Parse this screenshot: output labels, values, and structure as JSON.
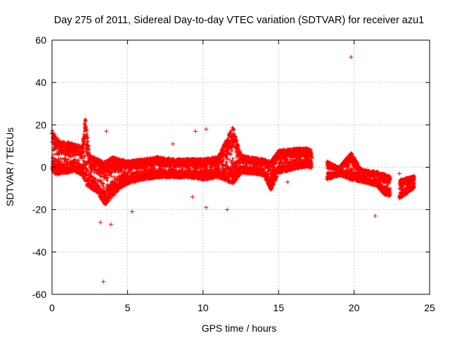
{
  "chart_data": {
    "type": "scatter",
    "title": "Day 275 of 2011, Sidereal Day-to-day VTEC variation (SDTVAR) for receiver azu1",
    "xlabel": "GPS time / hours",
    "ylabel": "SDTVAR / TECUs",
    "xlim": [
      0,
      25
    ],
    "ylim": [
      -60,
      60
    ],
    "x_ticks": [
      0,
      5,
      10,
      15,
      20,
      25
    ],
    "x_tick_labels": [
      "0",
      "5",
      "10",
      "15",
      "20",
      "25"
    ],
    "y_ticks": [
      -60,
      -40,
      -20,
      0,
      20,
      40,
      60
    ],
    "y_tick_labels": [
      "-60",
      "-40",
      "-20",
      "0",
      "20",
      "40",
      "60"
    ],
    "grid": true,
    "marker": "+",
    "series_color": "#ff0000",
    "band": [
      [
        0.0,
        -2,
        18
      ],
      [
        0.3,
        -4,
        14
      ],
      [
        0.6,
        -3,
        12
      ],
      [
        1.0,
        -3,
        12
      ],
      [
        1.5,
        -2,
        11
      ],
      [
        2.0,
        -4,
        10
      ],
      [
        2.2,
        -8,
        24
      ],
      [
        2.5,
        -10,
        6
      ],
      [
        3.0,
        -12,
        4
      ],
      [
        3.5,
        -18,
        3
      ],
      [
        4.0,
        -14,
        5
      ],
      [
        4.5,
        -10,
        4
      ],
      [
        5.0,
        -8,
        3
      ],
      [
        6.0,
        -6,
        4
      ],
      [
        7.0,
        -5,
        5
      ],
      [
        8.0,
        -5,
        4
      ],
      [
        9.0,
        -5,
        4
      ],
      [
        10.0,
        -6,
        4
      ],
      [
        11.0,
        -5,
        5
      ],
      [
        12.0,
        -8,
        20
      ],
      [
        12.5,
        -3,
        6
      ],
      [
        13.0,
        -3,
        5
      ],
      [
        14.0,
        -4,
        4
      ],
      [
        14.5,
        -11,
        3
      ],
      [
        15.0,
        -3,
        8
      ],
      [
        16.0,
        -1,
        9
      ],
      [
        17.0,
        0,
        9
      ],
      [
        18.2,
        -6,
        3
      ],
      [
        19.0,
        -4,
        0
      ],
      [
        19.8,
        -6,
        7
      ],
      [
        20.5,
        -7,
        -1
      ],
      [
        21.5,
        -9,
        -2
      ],
      [
        22.0,
        -13,
        -3
      ],
      [
        23.0,
        -15,
        -6
      ],
      [
        24.0,
        -10,
        -4
      ]
    ],
    "outliers": [
      {
        "x": 3.4,
        "y": -54
      },
      {
        "x": 19.8,
        "y": 52
      },
      {
        "x": 3.6,
        "y": 17
      },
      {
        "x": 9.5,
        "y": 17
      },
      {
        "x": 10.2,
        "y": 18
      },
      {
        "x": 8.0,
        "y": 11
      },
      {
        "x": 21.4,
        "y": -23
      },
      {
        "x": 23.0,
        "y": -3
      },
      {
        "x": 3.9,
        "y": -27
      },
      {
        "x": 5.3,
        "y": -21
      },
      {
        "x": 10.2,
        "y": -19
      },
      {
        "x": 11.6,
        "y": -20
      },
      {
        "x": 15.6,
        "y": -7
      },
      {
        "x": 9.3,
        "y": -14
      },
      {
        "x": 3.2,
        "y": -26
      }
    ],
    "data_gaps": [
      [
        17.2,
        18.2
      ],
      [
        22.4,
        23.0
      ]
    ]
  }
}
